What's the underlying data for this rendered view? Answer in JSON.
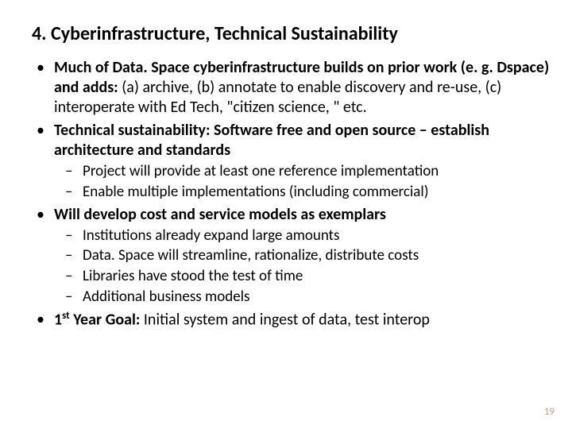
{
  "title": "4. Cyberinfrastructure, Technical Sustainability",
  "bullets": {
    "b1_bold": "Much of Data. Space cyberinfrastructure builds on prior work (e. g. Dspace) and adds: ",
    "b1_rest": "(a) archive, (b) annotate to enable discovery and re-use, (c) interoperate with Ed Tech, \"citizen science, \" etc.",
    "b2": "Technical sustainability: Software free and open source – establish architecture and standards",
    "b2_sub1": "Project will provide at least one reference implementation",
    "b2_sub2": "Enable multiple implementations (including commercial)",
    "b3": "Will develop cost and service models as exemplars",
    "b3_sub1": "Institutions already expand large amounts",
    "b3_sub2": "Data. Space will streamline, rationalize, distribute costs",
    "b3_sub3": "Libraries have stood the test of time",
    "b3_sub4": "Additional business models",
    "b4_pre": "1",
    "b4_sup": "st",
    "b4_bold": " Year Goal: ",
    "b4_rest": "Initial system and ingest of data, test interop"
  },
  "page_number": "19"
}
